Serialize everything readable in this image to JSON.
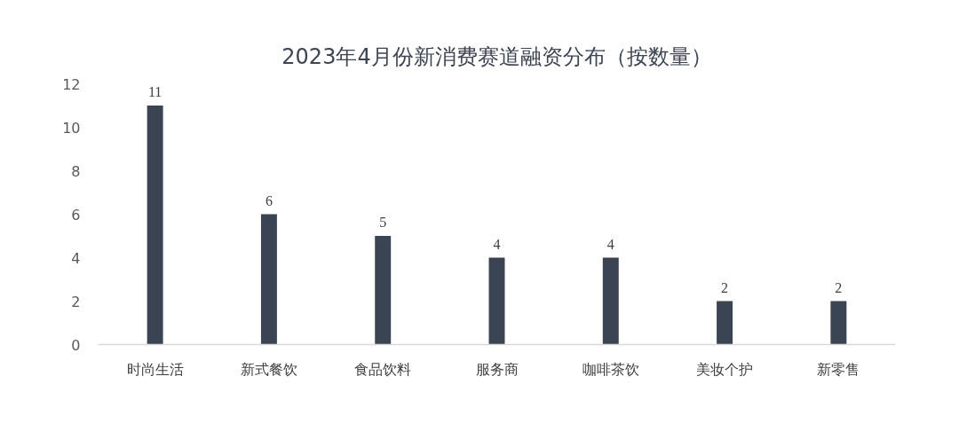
{
  "chart_data": {
    "type": "bar",
    "title": "2023年4月份新消费赛道融资分布（按数量）",
    "categories": [
      "时尚生活",
      "新式餐饮",
      "食品饮料",
      "服务商",
      "咖啡茶饮",
      "美妆个护",
      "新零售"
    ],
    "values": [
      11,
      6,
      5,
      4,
      4,
      2,
      2
    ],
    "color": "#3b4452",
    "ylim": [
      0,
      12
    ],
    "yticks": [
      0,
      2,
      4,
      6,
      8,
      10,
      12
    ],
    "grid": false,
    "data_labels": true
  }
}
